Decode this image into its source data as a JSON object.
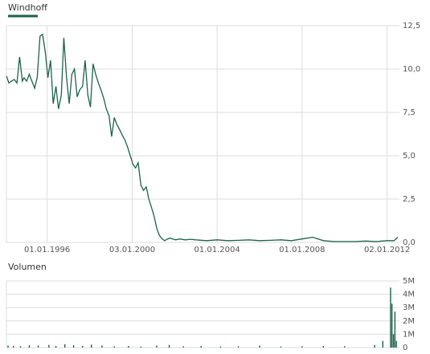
{
  "chart_data": [
    {
      "type": "line",
      "title": "Windhoff",
      "color": "#1e6249",
      "grid": true,
      "x": [
        "01.02.1994",
        "15.03.1994",
        "01.05.1994",
        "15.06.1994",
        "01.08.1994",
        "15.09.1994",
        "01.11.1994",
        "01.12.1994",
        "15.01.1995",
        "01.03.1995",
        "15.04.1995",
        "01.06.1995",
        "15.07.1995",
        "01.09.1995",
        "15.10.1995",
        "01.12.1995",
        "15.01.1996",
        "01.03.1996",
        "15.04.1996",
        "01.06.1996",
        "15.07.1996",
        "01.09.1996",
        "15.10.1996",
        "01.12.1996",
        "15.01.1997",
        "01.03.1997",
        "15.04.1997",
        "01.06.1997",
        "15.07.1997",
        "01.09.1997",
        "15.10.1997",
        "01.12.1997",
        "15.01.1998",
        "01.03.1998",
        "15.04.1998",
        "01.06.1998",
        "15.07.1998",
        "01.09.1998",
        "15.10.1998",
        "01.12.1998",
        "15.01.1999",
        "01.03.1999",
        "15.04.1999",
        "01.06.1999",
        "15.07.1999",
        "01.09.1999",
        "15.10.1999",
        "01.12.1999",
        "15.01.2000",
        "01.03.2000",
        "15.04.2000",
        "01.06.2000",
        "15.07.2000",
        "01.09.2000",
        "15.10.2000",
        "01.12.2000",
        "15.01.2001",
        "01.03.2001",
        "15.04.2001",
        "01.06.2001",
        "15.07.2001",
        "01.09.2001",
        "15.10.2001",
        "01.12.2001",
        "15.01.2002",
        "01.04.2002",
        "01.07.2002",
        "01.10.2002",
        "01.01.2003",
        "01.07.2003",
        "01.01.2004",
        "01.07.2004",
        "01.01.2005",
        "01.07.2005",
        "01.01.2006",
        "01.07.2006",
        "01.01.2007",
        "01.07.2007",
        "01.01.2008",
        "01.07.2008",
        "01.01.2009",
        "01.07.2009",
        "01.01.2010",
        "01.07.2010",
        "01.01.2011",
        "01.07.2011",
        "01.01.2012",
        "01.05.2012",
        "01.07.2012"
      ],
      "values": [
        9.6,
        9.2,
        9.3,
        9.4,
        9.2,
        10.7,
        9.3,
        9.5,
        9.3,
        9.7,
        9.3,
        8.9,
        9.5,
        11.9,
        12.0,
        11.0,
        9.5,
        10.5,
        8.0,
        9.0,
        7.7,
        8.5,
        11.8,
        9.5,
        8.0,
        9.7,
        10.0,
        8.4,
        8.8,
        9.0,
        10.5,
        8.5,
        7.8,
        10.3,
        9.7,
        9.2,
        8.8,
        8.3,
        7.7,
        7.3,
        6.1,
        7.2,
        6.8,
        6.5,
        6.2,
        5.9,
        5.5,
        5.0,
        4.5,
        4.3,
        4.6,
        3.3,
        3.0,
        3.2,
        2.5,
        2.0,
        1.5,
        0.8,
        0.4,
        0.2,
        0.1,
        0.2,
        0.25,
        0.2,
        0.15,
        0.2,
        0.15,
        0.18,
        0.15,
        0.1,
        0.15,
        0.1,
        0.12,
        0.15,
        0.1,
        0.12,
        0.15,
        0.1,
        0.2,
        0.3,
        0.1,
        0.05,
        0.05,
        0.05,
        0.08,
        0.05,
        0.1,
        0.1,
        0.3
      ],
      "xlim": [
        "01.02.1994",
        "01.08.2012"
      ],
      "xticks": [
        "01.01.1996",
        "03.01.2000",
        "01.01.2004",
        "01.01.2008",
        "02.01.2012"
      ],
      "ylim": [
        0,
        12.5
      ],
      "yticks": [
        {
          "value": 0,
          "label": "0,0"
        },
        {
          "value": 2.5,
          "label": "2,5"
        },
        {
          "value": 5,
          "label": "5,0"
        },
        {
          "value": 7.5,
          "label": "7,5"
        },
        {
          "value": 10,
          "label": "10,0"
        },
        {
          "value": 12.5,
          "label": "12,5"
        }
      ]
    },
    {
      "type": "bar",
      "title": "Volumen",
      "color": "#1e6249",
      "grid": true,
      "x": [
        "01.03.1994",
        "01.06.1994",
        "01.10.1994",
        "01.03.1995",
        "01.08.1995",
        "01.02.1996",
        "01.06.1996",
        "01.11.1996",
        "01.04.1997",
        "01.09.1997",
        "01.02.1998",
        "01.08.1998",
        "01.03.1999",
        "01.11.1999",
        "01.06.2000",
        "01.03.2001",
        "01.10.2001",
        "01.06.2002",
        "01.04.2003",
        "01.03.2004",
        "01.01.2005",
        "01.01.2006",
        "01.01.2007",
        "01.01.2008",
        "01.01.2009",
        "01.01.2010",
        "01.06.2011",
        "20.10.2011",
        "01.03.2012",
        "25.03.2012",
        "20.04.2012",
        "15.05.2012",
        "10.06.2012"
      ],
      "values": [
        150000,
        120000,
        100000,
        180000,
        150000,
        200000,
        120000,
        250000,
        180000,
        120000,
        220000,
        150000,
        100000,
        120000,
        80000,
        150000,
        200000,
        100000,
        120000,
        80000,
        100000,
        150000,
        80000,
        100000,
        120000,
        100000,
        200000,
        500000,
        4500000,
        3300000,
        1000000,
        2700000,
        500000
      ],
      "xlim": [
        "01.02.1994",
        "01.08.2012"
      ],
      "ylim": [
        0,
        5000000
      ],
      "yticks": [
        0,
        {
          "value": 1000000,
          "label": "1M"
        },
        {
          "value": 2000000,
          "label": "2M"
        },
        {
          "value": 3000000,
          "label": "3M"
        },
        {
          "value": 4000000,
          "label": "4M"
        },
        {
          "value": 5000000,
          "label": "5M"
        }
      ]
    }
  ]
}
